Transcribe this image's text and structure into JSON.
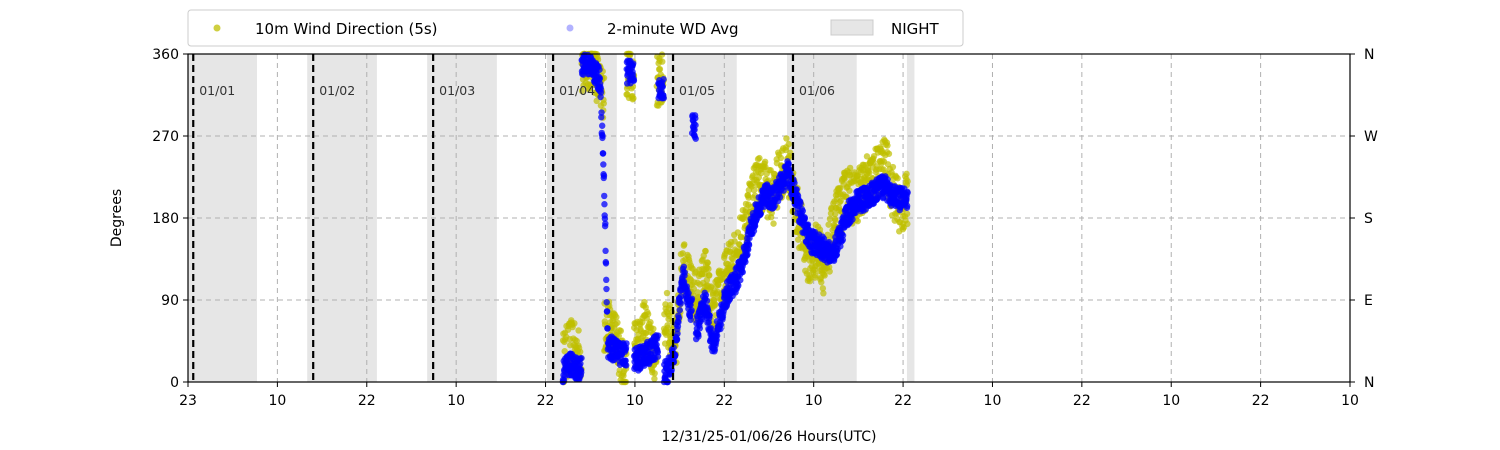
{
  "chart_data": {
    "type": "scatter",
    "title": "",
    "xlabel": "12/31/25-01/06/26  Hours(UTC)",
    "ylabel": "Degrees",
    "ylim": [
      0,
      360
    ],
    "xlim_hours": [
      0,
      155
    ],
    "x_tick_labels": [
      "23",
      "10",
      "22",
      "10",
      "22",
      "10",
      "22",
      "10",
      "22",
      "10",
      "22",
      "10",
      "22",
      "10"
    ],
    "y_ticks": [
      0,
      90,
      180,
      270,
      360
    ],
    "y_tick_labels": [
      "0",
      "90",
      "180",
      "270",
      "360"
    ],
    "y2_tick_labels": [
      "N",
      "E",
      "S",
      "W",
      "N"
    ],
    "grid": true,
    "legend_position": "top",
    "legend": {
      "raw": "10m Wind Direction (5s)",
      "avg": "2-minute WD Avg",
      "night": "NIGHT"
    },
    "day_markers": [
      {
        "hour": 0.7,
        "label": "01/01"
      },
      {
        "hour": 16.7,
        "label": "01/02"
      },
      {
        "hour": 32.7,
        "label": "01/03"
      },
      {
        "hour": 48.7,
        "label": "01/04"
      },
      {
        "hour": 64.7,
        "label": "01/05"
      },
      {
        "hour": 80.7,
        "label": "01/06"
      }
    ],
    "night_periods": [
      [
        0,
        9.2
      ],
      [
        15.9,
        25.2
      ],
      [
        31.9,
        41.2
      ],
      [
        47.9,
        57.2
      ],
      [
        63.9,
        73.2
      ],
      [
        79.9,
        89.2
      ],
      [
        95.9,
        96.9
      ]
    ],
    "colors": {
      "raw": "#bfbf00",
      "avg": "#0000ff",
      "night": "#e6e6e6",
      "day_line": "#000000",
      "grid": "#b0b0b0"
    },
    "series": [
      {
        "name": "2-minute WD Avg",
        "x": [
          50,
          51,
          52,
          53,
          54,
          55,
          55.6,
          56,
          57,
          58,
          59,
          60,
          61,
          62,
          62.5,
          63,
          64,
          65,
          66,
          67,
          67.5,
          68,
          69,
          70,
          71,
          72,
          73,
          74,
          75,
          76,
          77,
          78,
          79,
          80,
          81,
          82,
          83,
          84,
          85,
          86,
          87,
          88,
          89,
          90,
          91,
          92,
          93,
          94,
          95,
          96
        ],
        "y": [
          10,
          20,
          15,
          350,
          345,
          330,
          190,
          40,
          35,
          30,
          340,
          25,
          30,
          35,
          40,
          320,
          10,
          40,
          120,
          80,
          280,
          60,
          90,
          40,
          70,
          100,
          110,
          130,
          165,
          190,
          205,
          200,
          215,
          230,
          205,
          175,
          155,
          150,
          145,
          140,
          160,
          185,
          195,
          200,
          205,
          210,
          215,
          205,
          200,
          200
        ]
      },
      {
        "name": "10m Wind Direction (5s)",
        "x": [
          50,
          51,
          52,
          53,
          54,
          55,
          56,
          57,
          58,
          59,
          60,
          61,
          62,
          63,
          64,
          65,
          66,
          67,
          68,
          69,
          70,
          71,
          72,
          73,
          74,
          75,
          76,
          77,
          78,
          79,
          80,
          81,
          82,
          83,
          84,
          85,
          86,
          87,
          88,
          89,
          90,
          91,
          92,
          93,
          94,
          95,
          96
        ],
        "y": [
          25,
          40,
          30,
          345,
          355,
          320,
          60,
          50,
          20,
          340,
          45,
          60,
          30,
          330,
          70,
          30,
          140,
          100,
          90,
          120,
          70,
          100,
          120,
          140,
          160,
          200,
          220,
          215,
          200,
          230,
          240,
          195,
          160,
          130,
          150,
          120,
          170,
          190,
          210,
          200,
          215,
          220,
          230,
          240,
          210,
          190,
          200
        ]
      }
    ]
  }
}
